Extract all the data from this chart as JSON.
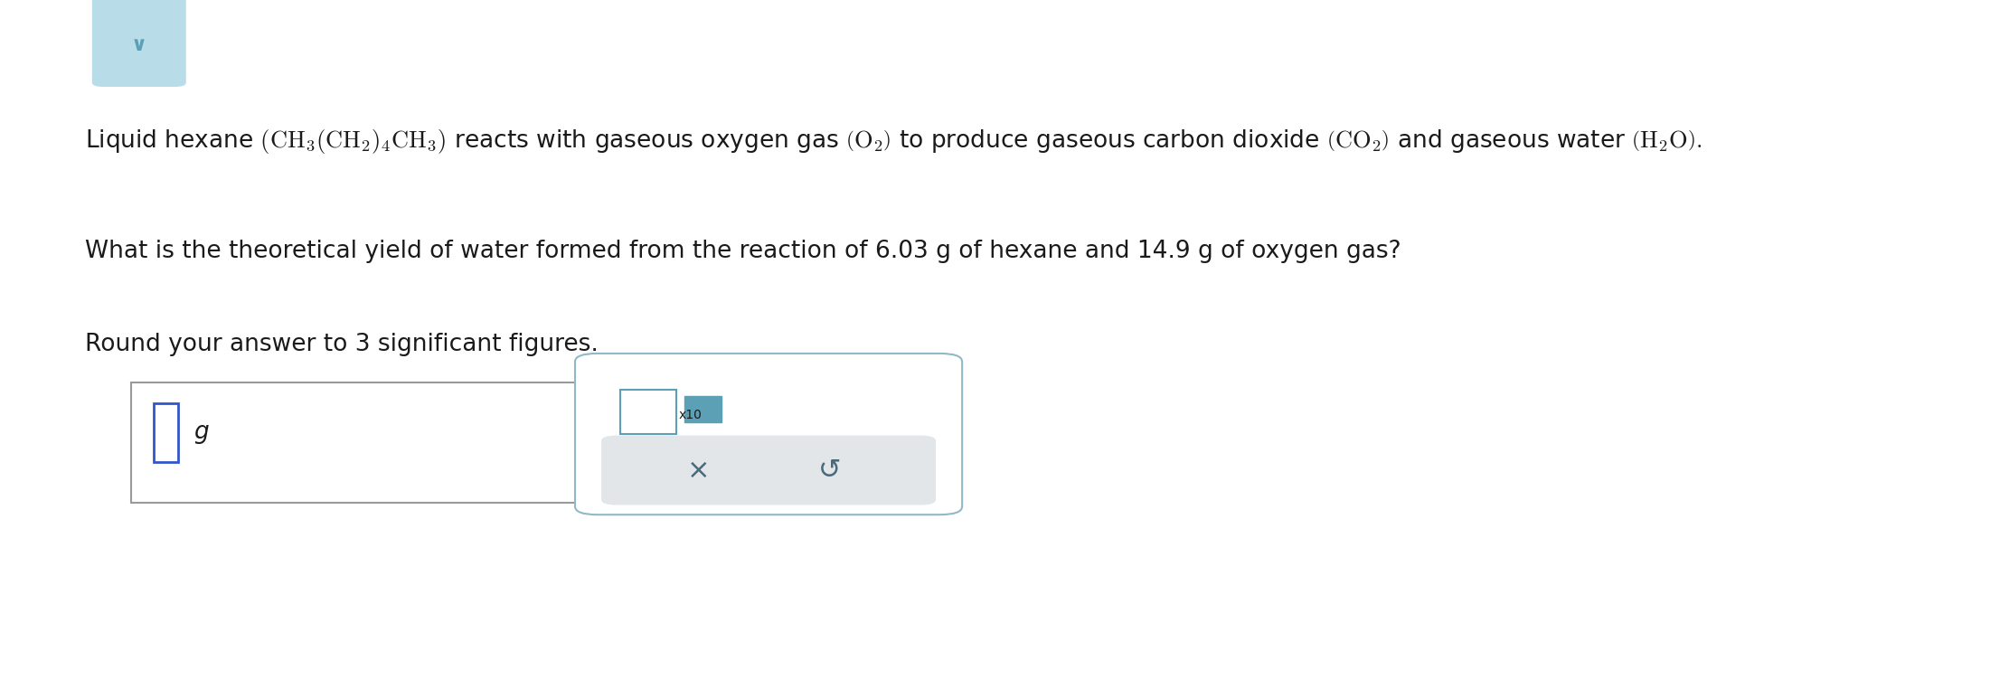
{
  "background_color": "#ffffff",
  "line2": "What is the theoretical yield of water formed from the reaction of 6.03 g of hexane and 14.9 g of oxygen gas?",
  "line3": "Round your answer to 3 significant figures.",
  "input_box_label": "g",
  "button_x": "×",
  "button_undo": "↺",
  "font_size_main": 19,
  "text_color": "#1a1a1a",
  "header_color": "#b8dde8",
  "header_check_color": "#5ba0b5",
  "box_border_color": "#999999",
  "box2_border_color": "#92b8c8",
  "cursor_color": "#3355cc",
  "button_bg": "#e2e6e8",
  "button_text_color": "#4a6a7a",
  "x10_color": "#5ba0b5",
  "math_line": "Liquid hexane $\\left(\\mathrm{CH_3(CH_2)_4CH_3}\\right)$ reacts with gaseous oxygen gas $\\left(\\mathrm{O_2}\\right)$ to produce gaseous carbon dioxide $\\left(\\mathrm{CO_2}\\right)$ and gaseous water $\\left(\\mathrm{H_2O}\\right).$"
}
